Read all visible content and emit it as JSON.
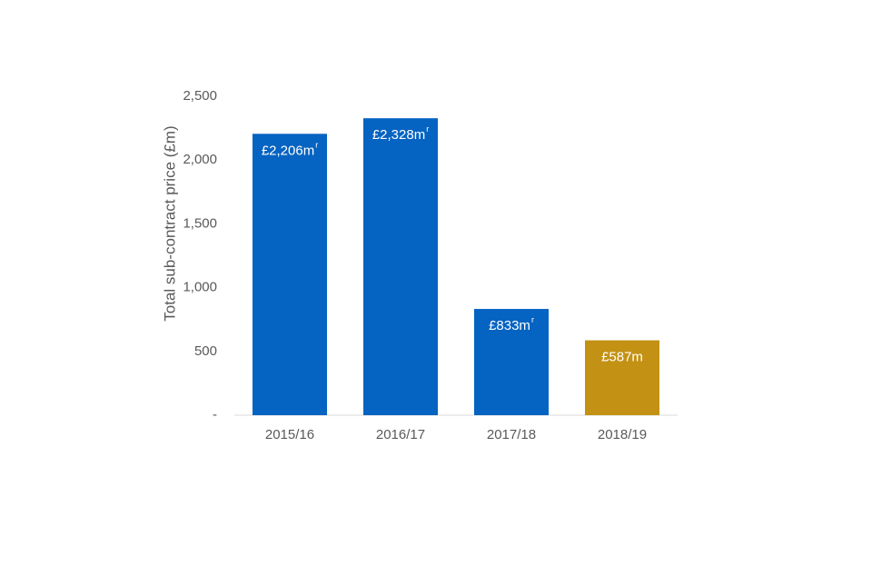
{
  "chart_data": {
    "type": "bar",
    "title": "",
    "xlabel": "",
    "ylabel": "Total sub-contract price (£m)",
    "categories": [
      "2015/16",
      "2016/17",
      "2017/18",
      "2018/19"
    ],
    "values": [
      2206,
      2328,
      833,
      587
    ],
    "data_labels": [
      "£2,206m",
      "£2,328m",
      "£833m",
      "£587m"
    ],
    "data_label_suffix": [
      "r",
      "r",
      "r",
      ""
    ],
    "bar_colors": [
      "#0563c1",
      "#0563c1",
      "#0563c1",
      "#c39214"
    ],
    "ylim": [
      0,
      2500
    ],
    "yticks": [
      0,
      500,
      1000,
      1500,
      2000,
      2500
    ],
    "ytick_labels": [
      "-",
      "500",
      "1,000",
      "1,500",
      "2,000",
      "2,500"
    ],
    "grid": false,
    "legend": "none"
  }
}
